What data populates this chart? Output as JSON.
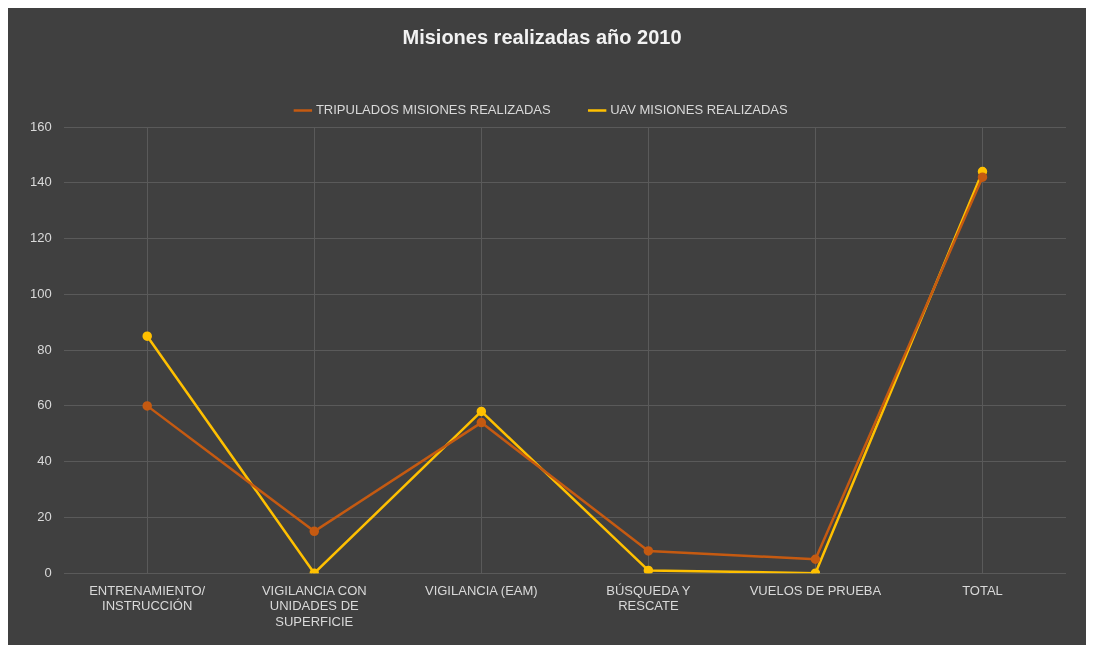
{
  "chart_data": {
    "type": "line",
    "title": "Misiones realizadas año 2010",
    "categories": [
      "ENTRENAMIENTO/INSTRUCCIÓN",
      "VIGILANCIA CON UNIDADES DE SUPERFICIE",
      "VIGILANCIA (EAM)",
      "BÚSQUEDA Y RESCATE",
      "VUELOS DE PRUEBA",
      "TOTAL"
    ],
    "series": [
      {
        "name": "UAV MISIONES REALIZADAS",
        "color": "#ffc000",
        "values": [
          85,
          0,
          58,
          1,
          0,
          144
        ]
      },
      {
        "name": "TRIPULADOS MISIONES REALIZADAS",
        "color": "#c55a11",
        "values": [
          60,
          15,
          54,
          8,
          5,
          142
        ]
      }
    ],
    "ylim": [
      0,
      160
    ],
    "yticks": [
      0,
      20,
      40,
      60,
      80,
      100,
      120,
      140,
      160
    ],
    "grid": true,
    "legend": "top",
    "marker": "circle",
    "line_style": "solid"
  }
}
